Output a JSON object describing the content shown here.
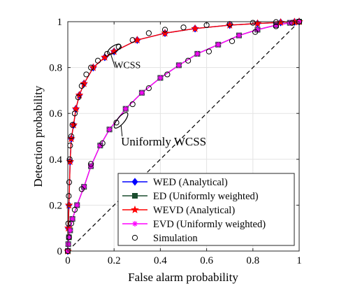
{
  "chart_data": {
    "type": "line",
    "xlabel": "False alarm probability",
    "ylabel": "Detection probability",
    "xlim": [
      0,
      1
    ],
    "ylim": [
      0,
      1
    ],
    "xticks": [
      "0",
      "0.2",
      "0.4",
      "0.6",
      "0.8",
      "1"
    ],
    "yticks": [
      "0",
      "0.2",
      "0.4",
      "0.6",
      "0.8",
      "1"
    ],
    "grid": true,
    "legend_position": "bottom-right",
    "annotations": [
      {
        "text": "WCSS",
        "x": 0.2,
        "y": 0.815
      },
      {
        "text": "Uniformly WCSS",
        "x": 0.23,
        "y": 0.485
      }
    ],
    "series": [
      {
        "name": "WED (Analytical)",
        "color": "#0000ff",
        "marker": "diamond",
        "x": [
          0,
          0.002,
          0.005,
          0.01,
          0.015,
          0.025,
          0.035,
          0.05,
          0.07,
          0.11,
          0.16,
          0.2,
          0.3,
          0.42,
          0.55,
          0.7,
          0.82,
          0.92,
          0.98,
          1
        ],
        "y": [
          0,
          0.1,
          0.2,
          0.39,
          0.49,
          0.55,
          0.62,
          0.68,
          0.73,
          0.8,
          0.845,
          0.87,
          0.92,
          0.95,
          0.97,
          0.985,
          0.992,
          0.997,
          0.999,
          1
        ]
      },
      {
        "name": "ED (Uniformly weighted)",
        "color": "#1b4d2e",
        "marker": "square",
        "x": [
          0,
          0.002,
          0.005,
          0.01,
          0.02,
          0.04,
          0.07,
          0.1,
          0.14,
          0.18,
          0.25,
          0.32,
          0.4,
          0.48,
          0.56,
          0.65,
          0.74,
          0.82,
          0.9,
          0.96,
          1
        ],
        "y": [
          0,
          0.03,
          0.06,
          0.09,
          0.14,
          0.2,
          0.28,
          0.37,
          0.46,
          0.53,
          0.62,
          0.69,
          0.755,
          0.81,
          0.86,
          0.9,
          0.94,
          0.965,
          0.985,
          0.995,
          1
        ]
      },
      {
        "name": "WEVD (Analytical)",
        "color": "#ff0000",
        "marker": "star",
        "x": [
          0,
          0.002,
          0.005,
          0.01,
          0.015,
          0.025,
          0.035,
          0.05,
          0.07,
          0.11,
          0.16,
          0.2,
          0.3,
          0.42,
          0.55,
          0.7,
          0.82,
          0.92,
          0.98,
          1
        ],
        "y": [
          0,
          0.1,
          0.2,
          0.39,
          0.49,
          0.55,
          0.62,
          0.68,
          0.73,
          0.8,
          0.845,
          0.87,
          0.92,
          0.95,
          0.97,
          0.985,
          0.992,
          0.997,
          0.999,
          1
        ]
      },
      {
        "name": "EVD (Uniformly weighted)",
        "color": "#ff00ff",
        "marker": "asterisk",
        "x": [
          0,
          0.002,
          0.005,
          0.01,
          0.02,
          0.04,
          0.07,
          0.1,
          0.14,
          0.18,
          0.25,
          0.32,
          0.4,
          0.48,
          0.56,
          0.65,
          0.74,
          0.82,
          0.9,
          0.96,
          1
        ],
        "y": [
          0,
          0.03,
          0.06,
          0.09,
          0.14,
          0.2,
          0.28,
          0.37,
          0.46,
          0.53,
          0.62,
          0.69,
          0.755,
          0.81,
          0.86,
          0.9,
          0.94,
          0.965,
          0.985,
          0.995,
          1
        ]
      },
      {
        "name": "Simulation",
        "color": "#000000",
        "marker": "circle",
        "x": [
          0,
          0.002,
          0.004,
          0.006,
          0.008,
          0.01,
          0.015,
          0.02,
          0.03,
          0.045,
          0.06,
          0.08,
          0.1,
          0.13,
          0.17,
          0.22,
          0.28,
          0.35,
          0.42,
          0.5,
          0.6,
          0.7,
          0.8,
          0.9,
          1
        ],
        "y": [
          0,
          0.12,
          0.24,
          0.3,
          0.4,
          0.46,
          0.5,
          0.55,
          0.6,
          0.67,
          0.72,
          0.77,
          0.8,
          0.83,
          0.86,
          0.89,
          0.92,
          0.95,
          0.965,
          0.975,
          0.985,
          0.99,
          0.995,
          0.998,
          1
        ]
      },
      {
        "name": "",
        "color": "#000000",
        "marker": "circle",
        "x": [
          0.005,
          0.015,
          0.03,
          0.06,
          0.1,
          0.15,
          0.21,
          0.28,
          0.35,
          0.43,
          0.52,
          0.61,
          0.71,
          0.81,
          0.9,
          0.97
        ],
        "y": [
          0.06,
          0.12,
          0.18,
          0.27,
          0.38,
          0.47,
          0.56,
          0.64,
          0.71,
          0.77,
          0.83,
          0.87,
          0.915,
          0.955,
          0.98,
          0.995
        ]
      },
      {
        "name": "",
        "color": "#000000",
        "marker": "none",
        "dashed": true,
        "x": [
          0,
          1
        ],
        "y": [
          0,
          1
        ]
      }
    ]
  }
}
